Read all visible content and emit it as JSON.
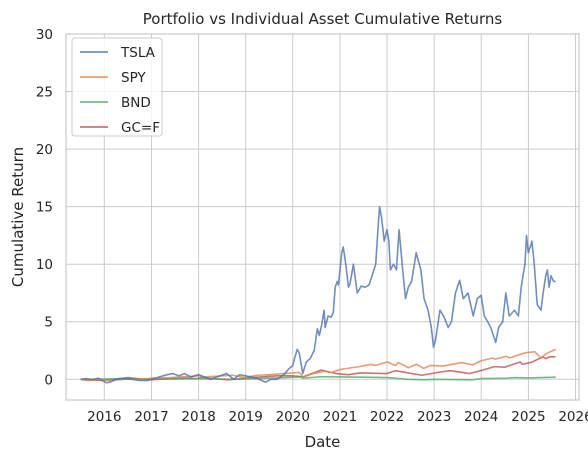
{
  "chart_data": {
    "type": "line",
    "title": "Portfolio vs Individual Asset Cumulative Returns",
    "xlabel": "Date",
    "ylabel": "Cumulative Return",
    "xlim": [
      "2015-03-10",
      "2026-01-28"
    ],
    "ylim": [
      -1.8,
      30
    ],
    "x_ticks": [
      "2016",
      "2017",
      "2018",
      "2019",
      "2020",
      "2021",
      "2022",
      "2023",
      "2024",
      "2025",
      "2026"
    ],
    "y_ticks": [
      0,
      5,
      10,
      15,
      20,
      25,
      30
    ],
    "grid": true,
    "legend_position": "upper-left",
    "series": [
      {
        "name": "TSLA",
        "color": "#4C72B0",
        "points": [
          [
            "2015-07-01",
            0.0
          ],
          [
            "2015-08-15",
            0.05
          ],
          [
            "2015-10-01",
            -0.05
          ],
          [
            "2015-11-15",
            0.1
          ],
          [
            "2016-01-15",
            -0.3
          ],
          [
            "2016-02-15",
            -0.25
          ],
          [
            "2016-04-01",
            0.0
          ],
          [
            "2016-06-01",
            0.05
          ],
          [
            "2016-08-01",
            0.0
          ],
          [
            "2016-10-01",
            -0.1
          ],
          [
            "2016-12-01",
            -0.1
          ],
          [
            "2017-01-15",
            0.05
          ],
          [
            "2017-03-01",
            0.2
          ],
          [
            "2017-05-01",
            0.4
          ],
          [
            "2017-06-15",
            0.5
          ],
          [
            "2017-08-01",
            0.3
          ],
          [
            "2017-09-15",
            0.5
          ],
          [
            "2017-11-01",
            0.2
          ],
          [
            "2018-01-01",
            0.4
          ],
          [
            "2018-02-15",
            0.2
          ],
          [
            "2018-04-01",
            0.0
          ],
          [
            "2018-06-15",
            0.3
          ],
          [
            "2018-08-07",
            0.5
          ],
          [
            "2018-09-30",
            0.0
          ],
          [
            "2018-11-15",
            0.4
          ],
          [
            "2018-12-31",
            0.3
          ],
          [
            "2019-02-15",
            0.2
          ],
          [
            "2019-04-15",
            0.0
          ],
          [
            "2019-06-03",
            -0.25
          ],
          [
            "2019-07-15",
            0.0
          ],
          [
            "2019-09-01",
            0.0
          ],
          [
            "2019-10-25",
            0.4
          ],
          [
            "2019-12-01",
            0.9
          ],
          [
            "2019-12-31",
            1.2
          ],
          [
            "2020-01-20",
            2.0
          ],
          [
            "2020-02-04",
            2.6
          ],
          [
            "2020-02-20",
            2.3
          ],
          [
            "2020-03-18",
            0.5
          ],
          [
            "2020-04-15",
            1.5
          ],
          [
            "2020-05-15",
            1.8
          ],
          [
            "2020-06-15",
            2.5
          ],
          [
            "2020-07-10",
            4.4
          ],
          [
            "2020-07-25",
            3.8
          ],
          [
            "2020-08-10",
            4.6
          ],
          [
            "2020-08-31",
            6.0
          ],
          [
            "2020-09-08",
            4.5
          ],
          [
            "2020-10-01",
            5.5
          ],
          [
            "2020-10-25",
            5.4
          ],
          [
            "2020-11-10",
            5.8
          ],
          [
            "2020-11-25",
            8.0
          ],
          [
            "2020-12-10",
            8.5
          ],
          [
            "2020-12-20",
            8.2
          ],
          [
            "2021-01-01",
            9.5
          ],
          [
            "2021-01-15",
            11.0
          ],
          [
            "2021-01-26",
            11.5
          ],
          [
            "2021-02-15",
            10.0
          ],
          [
            "2021-03-08",
            8.0
          ],
          [
            "2021-03-20",
            8.3
          ],
          [
            "2021-04-15",
            10.0
          ],
          [
            "2021-05-15",
            7.5
          ],
          [
            "2021-06-15",
            8.1
          ],
          [
            "2021-07-15",
            8.0
          ],
          [
            "2021-08-15",
            8.2
          ],
          [
            "2021-09-15",
            9.3
          ],
          [
            "2021-10-05",
            10.0
          ],
          [
            "2021-10-25",
            13.5
          ],
          [
            "2021-11-04",
            15.0
          ],
          [
            "2021-11-20",
            14.0
          ],
          [
            "2021-12-10",
            12.0
          ],
          [
            "2021-12-31",
            13.0
          ],
          [
            "2022-01-15",
            12.0
          ],
          [
            "2022-01-27",
            9.5
          ],
          [
            "2022-02-20",
            10.0
          ],
          [
            "2022-03-15",
            9.5
          ],
          [
            "2022-04-04",
            13.0
          ],
          [
            "2022-04-28",
            10.0
          ],
          [
            "2022-05-24",
            7.0
          ],
          [
            "2022-06-15",
            8.0
          ],
          [
            "2022-07-10",
            8.5
          ],
          [
            "2022-08-15",
            11.0
          ],
          [
            "2022-09-20",
            9.5
          ],
          [
            "2022-10-15",
            7.0
          ],
          [
            "2022-11-15",
            6.0
          ],
          [
            "2022-12-10",
            4.5
          ],
          [
            "2022-12-27",
            2.8
          ],
          [
            "2023-01-10",
            3.3
          ],
          [
            "2023-02-15",
            6.0
          ],
          [
            "2023-03-15",
            5.5
          ],
          [
            "2023-04-20",
            4.5
          ],
          [
            "2023-05-15",
            5.0
          ],
          [
            "2023-06-15",
            7.5
          ],
          [
            "2023-07-18",
            8.6
          ],
          [
            "2023-08-15",
            7.0
          ],
          [
            "2023-09-20",
            7.5
          ],
          [
            "2023-10-31",
            5.5
          ],
          [
            "2023-12-01",
            7.0
          ],
          [
            "2023-12-31",
            7.3
          ],
          [
            "2024-01-25",
            5.5
          ],
          [
            "2024-02-20",
            5.0
          ],
          [
            "2024-03-15",
            4.5
          ],
          [
            "2024-04-22",
            3.2
          ],
          [
            "2024-05-15",
            4.5
          ],
          [
            "2024-06-15",
            5.0
          ],
          [
            "2024-07-10",
            7.5
          ],
          [
            "2024-08-05",
            5.5
          ],
          [
            "2024-09-15",
            6.0
          ],
          [
            "2024-10-15",
            5.5
          ],
          [
            "2024-11-06",
            8.0
          ],
          [
            "2024-11-20",
            9.0
          ],
          [
            "2024-12-05",
            10.0
          ],
          [
            "2024-12-17",
            12.5
          ],
          [
            "2024-12-31",
            11.0
          ],
          [
            "2025-01-15",
            11.5
          ],
          [
            "2025-01-28",
            12.0
          ],
          [
            "2025-02-15",
            10.0
          ],
          [
            "2025-03-10",
            6.5
          ],
          [
            "2025-04-08",
            6.0
          ],
          [
            "2025-04-25",
            7.5
          ],
          [
            "2025-05-15",
            9.0
          ],
          [
            "2025-05-28",
            9.5
          ],
          [
            "2025-06-10",
            8.0
          ],
          [
            "2025-06-25",
            9.0
          ],
          [
            "2025-07-15",
            8.5
          ],
          [
            "2025-07-31",
            8.5
          ]
        ]
      },
      {
        "name": "SPY",
        "color": "#DD8452",
        "points": [
          [
            "2015-07-01",
            0.0
          ],
          [
            "2015-08-25",
            -0.1
          ],
          [
            "2015-11-01",
            0.0
          ],
          [
            "2016-02-11",
            -0.12
          ],
          [
            "2016-06-01",
            0.0
          ],
          [
            "2016-11-01",
            0.03
          ],
          [
            "2017-01-01",
            0.1
          ],
          [
            "2017-06-01",
            0.15
          ],
          [
            "2018-01-01",
            0.3
          ],
          [
            "2018-02-08",
            0.2
          ],
          [
            "2018-09-20",
            0.35
          ],
          [
            "2018-12-24",
            0.15
          ],
          [
            "2019-04-01",
            0.35
          ],
          [
            "2019-07-01",
            0.4
          ],
          [
            "2019-12-31",
            0.55
          ],
          [
            "2020-02-19",
            0.6
          ],
          [
            "2020-03-23",
            0.2
          ],
          [
            "2020-06-08",
            0.5
          ],
          [
            "2020-09-02",
            0.7
          ],
          [
            "2020-10-30",
            0.6
          ],
          [
            "2020-12-31",
            0.85
          ],
          [
            "2021-04-01",
            1.0
          ],
          [
            "2021-06-01",
            1.1
          ],
          [
            "2021-09-01",
            1.3
          ],
          [
            "2021-10-04",
            1.2
          ],
          [
            "2021-12-31",
            1.5
          ],
          [
            "2022-01-03",
            1.5
          ],
          [
            "2022-03-08",
            1.2
          ],
          [
            "2022-03-29",
            1.45
          ],
          [
            "2022-06-16",
            1.0
          ],
          [
            "2022-08-16",
            1.3
          ],
          [
            "2022-10-12",
            0.95
          ],
          [
            "2022-12-01",
            1.2
          ],
          [
            "2023-03-13",
            1.15
          ],
          [
            "2023-07-31",
            1.45
          ],
          [
            "2023-10-27",
            1.25
          ],
          [
            "2023-12-29",
            1.6
          ],
          [
            "2024-03-28",
            1.85
          ],
          [
            "2024-04-19",
            1.75
          ],
          [
            "2024-07-16",
            2.0
          ],
          [
            "2024-08-05",
            1.85
          ],
          [
            "2024-12-06",
            2.3
          ],
          [
            "2025-02-19",
            2.4
          ],
          [
            "2025-04-08",
            1.85
          ],
          [
            "2025-05-15",
            2.2
          ],
          [
            "2025-06-30",
            2.45
          ],
          [
            "2025-07-31",
            2.6
          ]
        ]
      },
      {
        "name": "BND",
        "color": "#55A868",
        "points": [
          [
            "2015-07-01",
            0.0
          ],
          [
            "2016-07-01",
            0.05
          ],
          [
            "2016-12-01",
            0.0
          ],
          [
            "2017-12-31",
            0.05
          ],
          [
            "2018-10-31",
            0.0
          ],
          [
            "2019-08-31",
            0.12
          ],
          [
            "2020-03-09",
            0.2
          ],
          [
            "2020-03-19",
            0.1
          ],
          [
            "2020-08-06",
            0.22
          ],
          [
            "2020-12-31",
            0.2
          ],
          [
            "2021-06-30",
            0.18
          ],
          [
            "2021-12-31",
            0.15
          ],
          [
            "2022-06-14",
            0.0
          ],
          [
            "2022-10-21",
            -0.05
          ],
          [
            "2022-12-31",
            0.0
          ],
          [
            "2023-10-19",
            -0.05
          ],
          [
            "2023-12-31",
            0.06
          ],
          [
            "2024-06-30",
            0.08
          ],
          [
            "2024-09-16",
            0.15
          ],
          [
            "2024-12-31",
            0.12
          ],
          [
            "2025-07-31",
            0.18
          ]
        ]
      },
      {
        "name": "GC=F",
        "color": "#C44E52",
        "points": [
          [
            "2015-07-01",
            0.0
          ],
          [
            "2015-12-17",
            -0.1
          ],
          [
            "2016-07-06",
            0.15
          ],
          [
            "2016-12-15",
            -0.05
          ],
          [
            "2017-09-08",
            0.12
          ],
          [
            "2017-12-12",
            0.05
          ],
          [
            "2018-01-25",
            0.15
          ],
          [
            "2018-08-16",
            -0.05
          ],
          [
            "2019-02-20",
            0.15
          ],
          [
            "2019-09-04",
            0.3
          ],
          [
            "2019-12-31",
            0.3
          ],
          [
            "2020-03-19",
            0.2
          ],
          [
            "2020-08-06",
            0.8
          ],
          [
            "2020-11-30",
            0.5
          ],
          [
            "2021-03-08",
            0.4
          ],
          [
            "2021-06-01",
            0.55
          ],
          [
            "2021-12-31",
            0.5
          ],
          [
            "2022-03-08",
            0.75
          ],
          [
            "2022-09-28",
            0.35
          ],
          [
            "2023-01-31",
            0.6
          ],
          [
            "2023-05-04",
            0.75
          ],
          [
            "2023-10-05",
            0.5
          ],
          [
            "2023-12-28",
            0.75
          ],
          [
            "2024-04-12",
            1.1
          ],
          [
            "2024-06-30",
            1.05
          ],
          [
            "2024-10-30",
            1.5
          ],
          [
            "2024-11-14",
            1.3
          ],
          [
            "2025-01-31",
            1.5
          ],
          [
            "2025-04-22",
            1.95
          ],
          [
            "2025-05-15",
            1.8
          ],
          [
            "2025-06-15",
            1.95
          ],
          [
            "2025-07-31",
            1.95
          ]
        ]
      }
    ]
  }
}
